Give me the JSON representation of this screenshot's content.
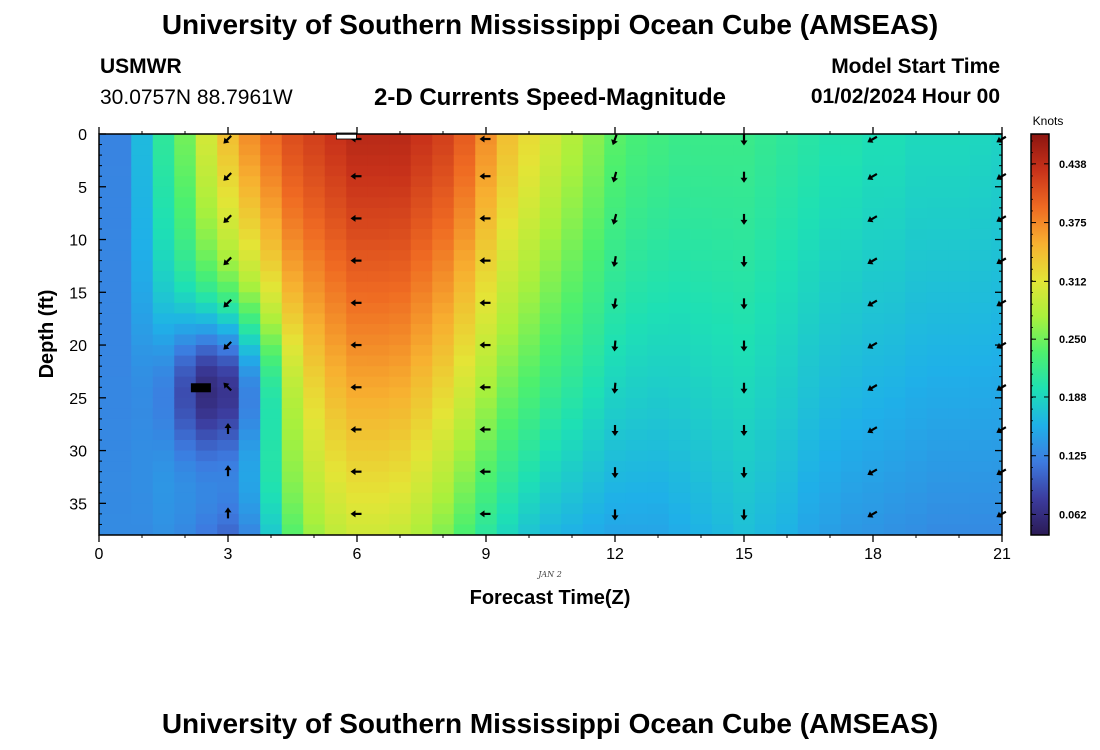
{
  "header": {
    "title": "University of Southern Mississippi Ocean Cube (AMSEAS)",
    "station": "USMWR",
    "coordinates": "30.0757N  88.7961W",
    "plot_title": "2-D Currents Speed-Magnitude",
    "model_start_label": "Model Start Time",
    "model_start_value": "01/02/2024 Hour 00"
  },
  "footer": {
    "title": "University of Southern Mississippi Ocean Cube (AMSEAS)"
  },
  "chart_data": {
    "type": "heatmap",
    "title": "2-D Currents Speed-Magnitude",
    "xlabel": "Forecast Time(Z)",
    "ylabel": "Depth (ft)",
    "date_label": "JAN 2",
    "xlim": [
      0,
      21
    ],
    "ylim": [
      0,
      38
    ],
    "x_ticks": [
      0,
      3,
      6,
      9,
      12,
      15,
      18,
      21
    ],
    "y_ticks": [
      0,
      5,
      10,
      15,
      20,
      25,
      30,
      35
    ],
    "colorbar": {
      "label": "Knots",
      "min": 0.04,
      "max": 0.47,
      "ticks": [
        "0.062",
        "0.125",
        "0.188",
        "0.250",
        "0.312",
        "0.375",
        "0.438"
      ],
      "colors": [
        "#2b1a55",
        "#3c3c9e",
        "#3d7be0",
        "#1fb0e8",
        "#1ee0b4",
        "#4df06e",
        "#aaf03c",
        "#e4e436",
        "#f7b030",
        "#ef6a22",
        "#c8321a",
        "#8c1510"
      ]
    },
    "profile_times": [
      0,
      0.75,
      1.25,
      1.75,
      2.25,
      2.75,
      3.25,
      3.75,
      4.25,
      4.75,
      5.25,
      5.75,
      6.25,
      6.75,
      7.25,
      7.75,
      8.25,
      8.75,
      9.25,
      9.75,
      10.25,
      10.75,
      11.25,
      11.75,
      12.25,
      12.75,
      13.25,
      13.75,
      14.25,
      14.75,
      15.25,
      15.75,
      16.25,
      16.75,
      17.25,
      17.75,
      18.25,
      18.75,
      19.25,
      19.75,
      20.25,
      20.75
    ],
    "surface_speed_knots": [
      0.125,
      0.165,
      0.21,
      0.25,
      0.3,
      0.34,
      0.37,
      0.39,
      0.41,
      0.42,
      0.43,
      0.44,
      0.44,
      0.44,
      0.43,
      0.42,
      0.4,
      0.37,
      0.34,
      0.32,
      0.3,
      0.28,
      0.26,
      0.24,
      0.23,
      0.225,
      0.22,
      0.22,
      0.22,
      0.22,
      0.215,
      0.21,
      0.205,
      0.2,
      0.2,
      0.195,
      0.195,
      0.19,
      0.19,
      0.19,
      0.188,
      0.185
    ],
    "bottom_speed_knots": [
      0.13,
      0.13,
      0.135,
      0.13,
      0.12,
      0.11,
      0.13,
      0.18,
      0.24,
      0.27,
      0.29,
      0.3,
      0.3,
      0.295,
      0.28,
      0.26,
      0.235,
      0.21,
      0.19,
      0.175,
      0.165,
      0.16,
      0.155,
      0.15,
      0.15,
      0.15,
      0.155,
      0.16,
      0.165,
      0.17,
      0.165,
      0.16,
      0.15,
      0.145,
      0.14,
      0.138,
      0.135,
      0.133,
      0.13,
      0.13,
      0.13,
      0.13
    ],
    "low_speed_core": {
      "time": 2.4,
      "depth": 24,
      "min_speed_knots": 0.06
    },
    "vector_times": [
      3,
      6,
      9,
      12,
      15,
      18,
      21
    ],
    "vector_depths": [
      0,
      4,
      8,
      12,
      16,
      20,
      24,
      28,
      32,
      36
    ],
    "vector_direction_deg": [
      [
        225,
        225,
        225,
        225,
        225,
        225,
        315,
        0,
        0,
        0
      ],
      [
        270,
        270,
        270,
        270,
        270,
        270,
        270,
        270,
        270,
        270
      ],
      [
        270,
        270,
        270,
        270,
        270,
        270,
        270,
        270,
        270,
        270
      ],
      [
        200,
        195,
        195,
        190,
        190,
        185,
        185,
        180,
        180,
        180
      ],
      [
        180,
        180,
        180,
        180,
        180,
        180,
        180,
        180,
        180,
        180
      ],
      [
        240,
        240,
        240,
        240,
        240,
        240,
        240,
        240,
        240,
        240
      ],
      [
        240,
        240,
        240,
        240,
        240,
        240,
        240,
        240,
        240,
        240
      ]
    ]
  }
}
